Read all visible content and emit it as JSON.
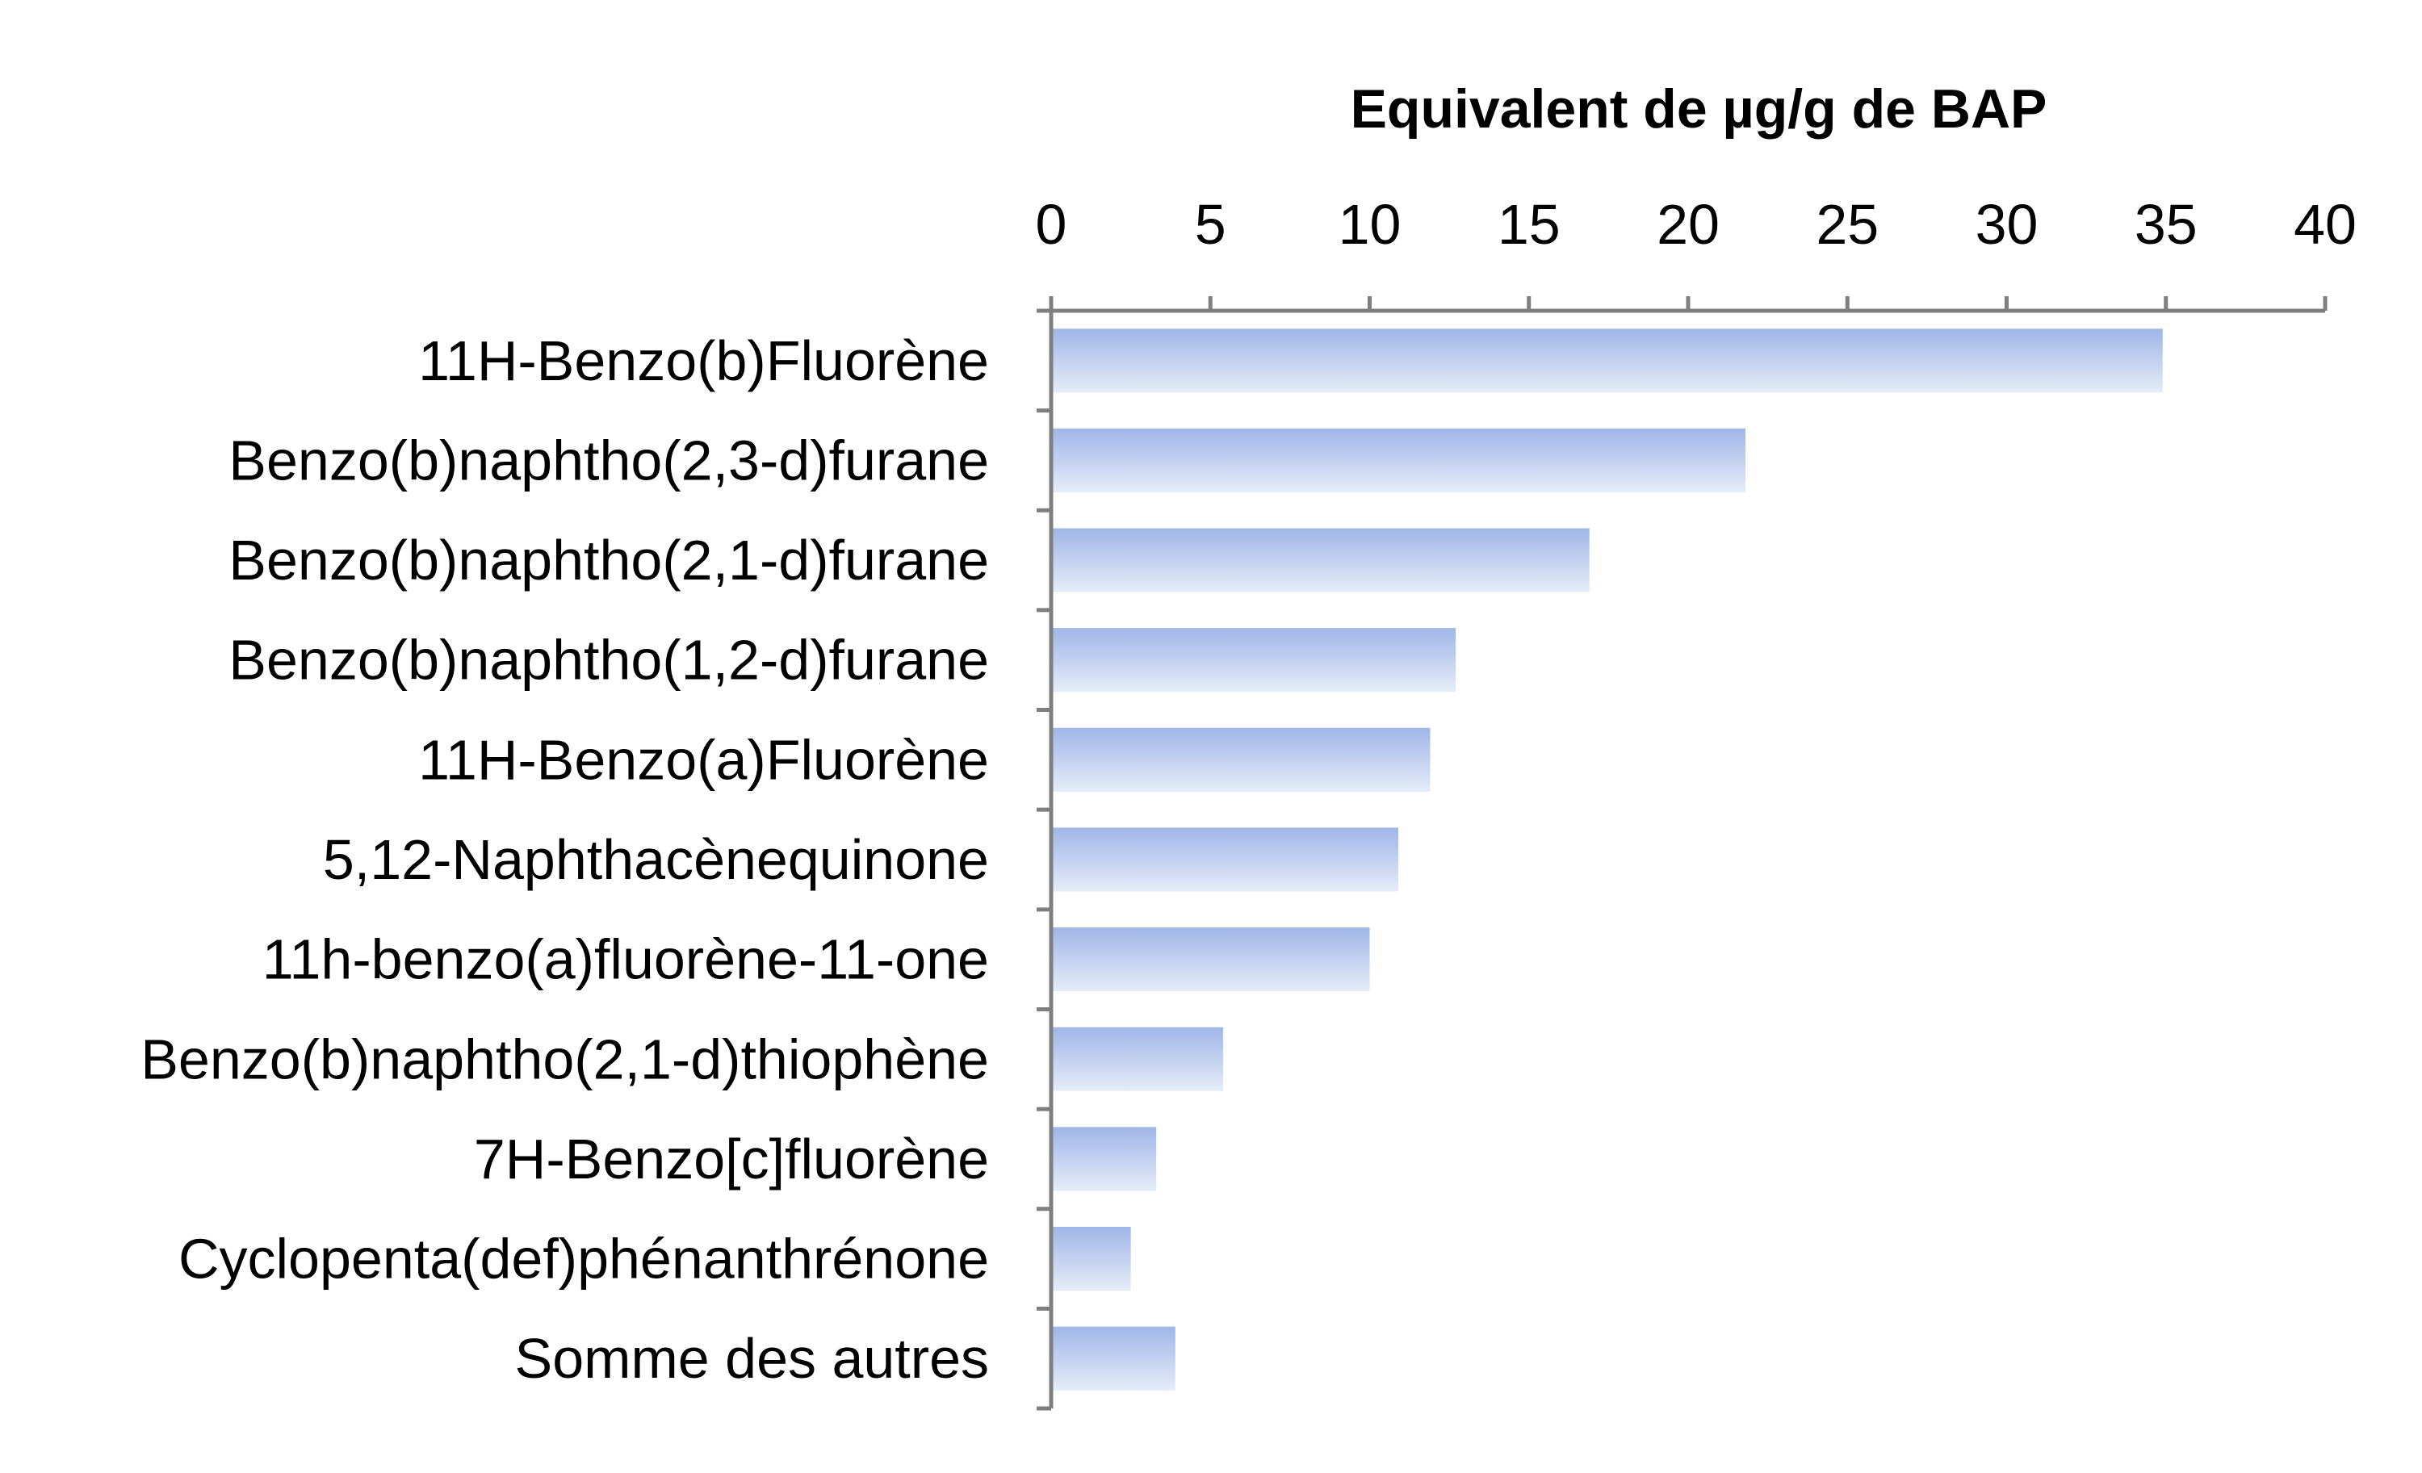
{
  "chart_data": {
    "type": "bar",
    "orientation": "horizontal",
    "xlabel": "Equivalent de µg/g de BAP",
    "xaxis_position": "top",
    "xlim": [
      0,
      40
    ],
    "xticks": [
      0,
      5,
      10,
      15,
      20,
      25,
      30,
      35,
      40
    ],
    "grid": false,
    "categories": [
      "11H-Benzo(b)Fluorène",
      "Benzo(b)naphtho(2,3-d)furane",
      "Benzo(b)naphtho(2,1-d)furane",
      "Benzo(b)naphtho(1,2-d)furane",
      "11H-Benzo(a)Fluorène",
      "5,12-Naphthacènequinone",
      "11h-benzo(a)fluorène-11-one",
      "Benzo(b)naphtho(2,1-d)thiophène",
      "7H-Benzo[c]fluorène",
      "Cyclopenta(def)phénanthrénone",
      "Somme des autres"
    ],
    "values": [
      34.9,
      21.8,
      16.9,
      12.7,
      11.9,
      10.9,
      10.0,
      5.4,
      3.3,
      2.5,
      3.9
    ],
    "bar_color_top": "#9fb6e8",
    "bar_color_bottom": "#e6ecf8"
  }
}
